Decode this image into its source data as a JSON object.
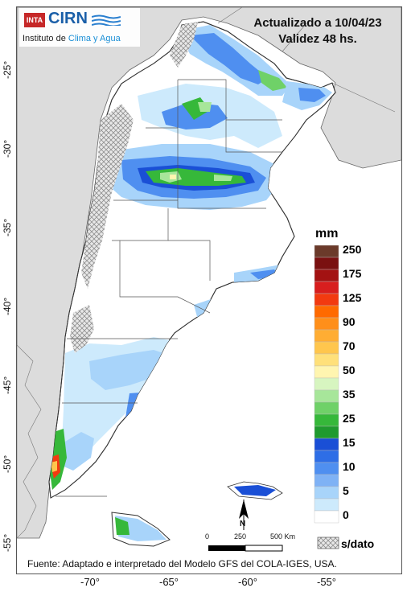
{
  "header": {
    "line1": "Actualizado a 10/04/23",
    "line2": "Validez 48 hs."
  },
  "logo": {
    "inta_text": "INTA",
    "cirn_text": "CIRN",
    "subtitle_prefix": "Instituto de ",
    "subtitle_highlight": "Clima y Agua"
  },
  "legend": {
    "unit": "mm",
    "nodata_label": "s/dato",
    "classes": [
      {
        "label": "250",
        "color": "#6b3a2a"
      },
      {
        "label": "",
        "color": "#7a1010"
      },
      {
        "label": "175",
        "color": "#a31212"
      },
      {
        "label": "",
        "color": "#d81e1e"
      },
      {
        "label": "125",
        "color": "#f23a10"
      },
      {
        "label": "",
        "color": "#ff6a00"
      },
      {
        "label": "90",
        "color": "#ff8f1a"
      },
      {
        "label": "",
        "color": "#ffad33"
      },
      {
        "label": "70",
        "color": "#ffc64d"
      },
      {
        "label": "",
        "color": "#ffe07a"
      },
      {
        "label": "50",
        "color": "#fff5b0"
      },
      {
        "label": "",
        "color": "#d7f5c0"
      },
      {
        "label": "35",
        "color": "#a7e69a"
      },
      {
        "label": "",
        "color": "#6fd168"
      },
      {
        "label": "25",
        "color": "#36b83a"
      },
      {
        "label": "",
        "color": "#1f9a2e"
      },
      {
        "label": "15",
        "color": "#1a4fd6"
      },
      {
        "label": "",
        "color": "#2e6ee6"
      },
      {
        "label": "10",
        "color": "#4f8ff0"
      },
      {
        "label": "",
        "color": "#7fb2f5"
      },
      {
        "label": "5",
        "color": "#a8d4fa"
      },
      {
        "label": "",
        "color": "#cdeafc"
      },
      {
        "label": "0",
        "color": "#ffffff"
      }
    ]
  },
  "scale": {
    "labels": [
      "0",
      "250",
      "500 Km"
    ],
    "north": "N"
  },
  "axes": {
    "lat_ticks": [
      "-25°",
      "-30°",
      "-35°",
      "-40°",
      "-45°",
      "-50°",
      "-55°"
    ],
    "lon_ticks": [
      "-70°",
      "-65°",
      "-60°",
      "-55°"
    ]
  },
  "source": "Fuente: Adaptado e interpretado del Modelo GFS del COLA-IGES, USA.",
  "colors": {
    "ocean": "#ffffff",
    "neighbor_land": "#dcdcdc",
    "argentina_land": "#ffffff",
    "border": "#444444",
    "nodata_hatch": "#9a9a9a"
  }
}
